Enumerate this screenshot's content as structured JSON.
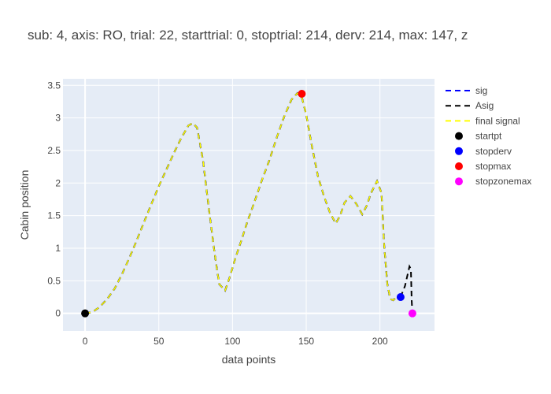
{
  "chart_data": {
    "type": "line",
    "title": "sub: 4, axis: RO, trial: 22, starttrial: 0, stoptrial: 214, derv: 214, max: 147, z",
    "xlabel": "data points",
    "ylabel": "Cabin position",
    "xlim": [
      -15,
      237
    ],
    "ylim": [
      -0.27,
      3.6
    ],
    "x_ticks": [
      0,
      50,
      100,
      150,
      200
    ],
    "y_ticks": [
      0,
      0.5,
      1,
      1.5,
      2,
      2.5,
      3,
      3.5
    ],
    "x_tick_labels": [
      "0",
      "50",
      "100",
      "150",
      "200"
    ],
    "y_tick_labels": [
      "0",
      "0.5",
      "1",
      "1.5",
      "2",
      "2.5",
      "3",
      "3.5"
    ],
    "grid": true,
    "legend_position": "right",
    "signal": {
      "x": [
        0,
        5,
        10,
        15,
        20,
        25,
        30,
        35,
        40,
        45,
        50,
        55,
        60,
        65,
        70,
        73,
        76,
        80,
        84,
        88,
        91,
        95,
        98,
        102,
        106,
        110,
        115,
        120,
        125,
        130,
        135,
        140,
        144,
        147,
        150,
        154,
        158,
        162,
        166,
        170,
        173,
        176,
        180,
        184,
        188,
        191,
        194,
        198,
        201,
        203,
        205,
        207,
        209,
        211,
        213,
        214
      ],
      "y": [
        0.0,
        0.02,
        0.1,
        0.22,
        0.38,
        0.6,
        0.85,
        1.12,
        1.4,
        1.68,
        1.95,
        2.2,
        2.45,
        2.68,
        2.88,
        2.92,
        2.85,
        2.35,
        1.6,
        0.9,
        0.45,
        0.35,
        0.55,
        0.85,
        1.12,
        1.4,
        1.72,
        2.05,
        2.35,
        2.7,
        3.02,
        3.28,
        3.38,
        3.32,
        3.05,
        2.55,
        2.1,
        1.8,
        1.55,
        1.38,
        1.5,
        1.7,
        1.8,
        1.68,
        1.52,
        1.65,
        1.85,
        2.03,
        1.85,
        1.0,
        0.45,
        0.22,
        0.2,
        0.25,
        0.26,
        0.25
      ]
    },
    "series": [
      {
        "name": "sig",
        "color": "#0000ff",
        "dash": "dash"
      },
      {
        "name": "Asig",
        "color": "#000000",
        "dash": "dash",
        "extra": {
          "x": [
            214,
            217,
            219,
            220,
            221,
            221.5,
            222
          ],
          "y": [
            0.25,
            0.42,
            0.62,
            0.72,
            0.68,
            0.2,
            0.0
          ]
        }
      },
      {
        "name": "final signal",
        "color": "#ffff00",
        "dash": "dash"
      },
      {
        "name": "startpt",
        "color": "#000000",
        "marker": true,
        "x": [
          0
        ],
        "y": [
          0
        ]
      },
      {
        "name": "stopderv",
        "color": "#0000ff",
        "marker": true,
        "x": [
          214
        ],
        "y": [
          0.25
        ]
      },
      {
        "name": "stopmax",
        "color": "#ff0000",
        "marker": true,
        "x": [
          147
        ],
        "y": [
          3.37
        ]
      },
      {
        "name": "stopzonemax",
        "color": "#ff00ff",
        "marker": true,
        "x": [
          222
        ],
        "y": [
          0.0
        ]
      }
    ],
    "colors": {
      "plot_bg": "#e5ecf6",
      "grid": "#ffffff",
      "text": "#444444"
    }
  }
}
